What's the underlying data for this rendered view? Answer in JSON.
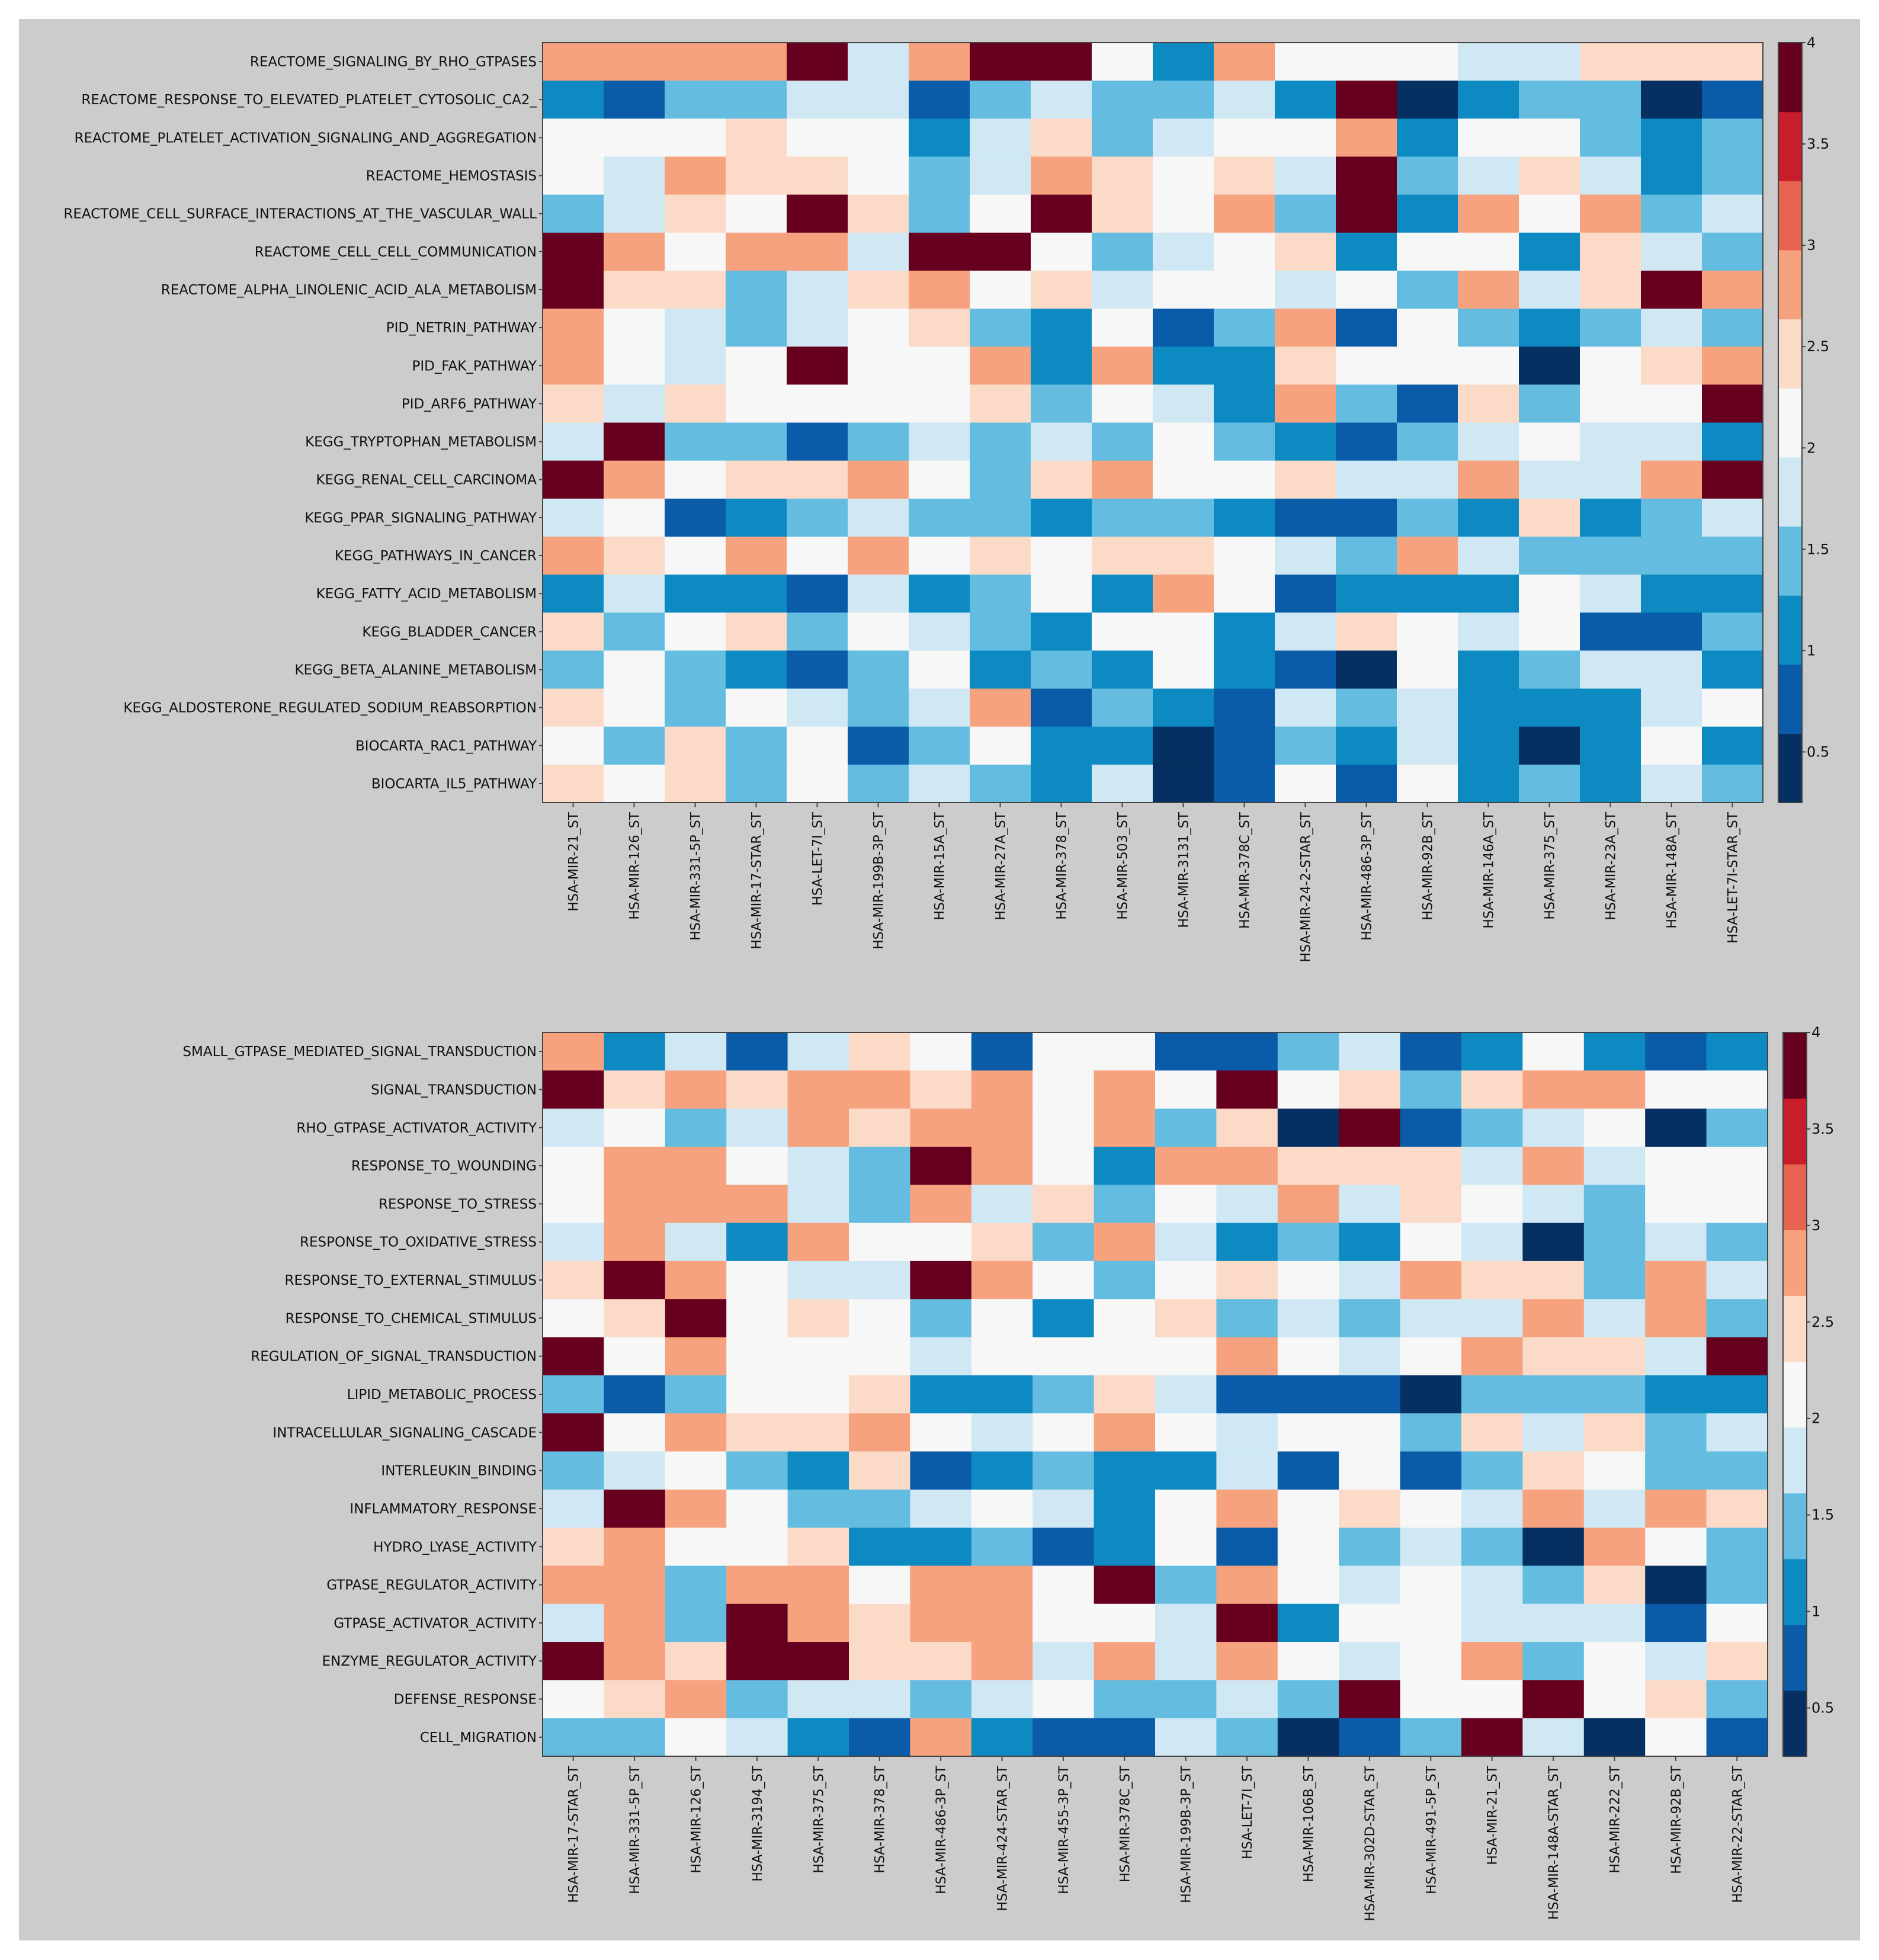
{
  "colorbar": {
    "min": 0.25,
    "max": 4,
    "ticks": [
      0.5,
      1,
      1.5,
      2,
      2.5,
      3,
      3.5,
      4
    ],
    "tick_labels": [
      "0.5",
      "1",
      "1.5",
      "2",
      "2.5",
      "3",
      "3.5",
      "4"
    ],
    "colors": [
      "#053061",
      "#0a5ca8",
      "#0e8ac3",
      "#64bde0",
      "#cfe8f3",
      "#f7f7f7",
      "#fbdbc8",
      "#f6a27f",
      "#e56350",
      "#c81d2a",
      "#67001f"
    ]
  },
  "chart_data": [
    {
      "type": "heatmap",
      "name": "reactome-kegg-pathways",
      "rows": [
        "REACTOME_SIGNALING_BY_RHO_GTPASES",
        "REACTOME_RESPONSE_TO_ELEVATED_PLATELET_CYTOSOLIC_CA2_",
        "REACTOME_PLATELET_ACTIVATION_SIGNALING_AND_AGGREGATION",
        "REACTOME_HEMOSTASIS",
        "REACTOME_CELL_SURFACE_INTERACTIONS_AT_THE_VASCULAR_WALL",
        "REACTOME_CELL_CELL_COMMUNICATION",
        "REACTOME_ALPHA_LINOLENIC_ACID_ALA_METABOLISM",
        "PID_NETRIN_PATHWAY",
        "PID_FAK_PATHWAY",
        "PID_ARF6_PATHWAY",
        "KEGG_TRYPTOPHAN_METABOLISM",
        "KEGG_RENAL_CELL_CARCINOMA",
        "KEGG_PPAR_SIGNALING_PATHWAY",
        "KEGG_PATHWAYS_IN_CANCER",
        "KEGG_FATTY_ACID_METABOLISM",
        "KEGG_BLADDER_CANCER",
        "KEGG_BETA_ALANINE_METABOLISM",
        "KEGG_ALDOSTERONE_REGULATED_SODIUM_REABSORPTION",
        "BIOCARTA_RAC1_PATHWAY",
        "BIOCARTA_IL5_PATHWAY"
      ],
      "columns": [
        "HSA-MIR-21_ST",
        "HSA-MIR-126_ST",
        "HSA-MIR-331-5P_ST",
        "HSA-MIR-17-STAR_ST",
        "HSA-LET-7I_ST",
        "HSA-MIR-199B-3P_ST",
        "HSA-MIR-15A_ST",
        "HSA-MIR-27A_ST",
        "HSA-MIR-378_ST",
        "HSA-MIR-503_ST",
        "HSA-MIR-3131_ST",
        "HSA-MIR-378C_ST",
        "HSA-MIR-24-2-STAR_ST",
        "HSA-MIR-486-3P_ST",
        "HSA-MIR-92B_ST",
        "HSA-MIR-146A_ST",
        "HSA-MIR-375_ST",
        "HSA-MIR-23A_ST",
        "HSA-MIR-148A_ST",
        "HSA-LET-7I-STAR_ST"
      ],
      "values": [
        [
          2.8,
          2.8,
          2.8,
          2.8,
          4,
          1.8,
          2.8,
          4,
          4,
          2,
          1.2,
          2.8,
          2,
          2,
          2,
          1.8,
          1.8,
          2.4,
          2.4,
          2.4
        ],
        [
          1.2,
          0.8,
          1.5,
          1.5,
          1.8,
          1.8,
          0.8,
          1.5,
          1.8,
          1.5,
          1.5,
          1.8,
          1.2,
          4,
          0.4,
          1.2,
          1.5,
          1.5,
          0.4,
          0.8
        ],
        [
          2,
          2,
          2,
          2.4,
          2,
          2,
          1.2,
          1.8,
          2.4,
          1.5,
          1.8,
          2,
          2,
          2.8,
          1.2,
          2,
          2,
          1.5,
          1.2,
          1.5
        ],
        [
          2,
          1.8,
          2.8,
          2.4,
          2.4,
          2,
          1.5,
          1.8,
          2.8,
          2.4,
          2,
          2.4,
          1.8,
          4,
          1.5,
          1.8,
          2.4,
          1.8,
          1.2,
          1.5
        ],
        [
          1.5,
          1.8,
          2.4,
          2,
          4,
          2.4,
          1.5,
          2,
          4,
          2.4,
          2,
          2.8,
          1.5,
          4,
          1.2,
          2.8,
          2,
          2.8,
          1.5,
          1.8
        ],
        [
          4,
          2.8,
          2,
          2.8,
          2.8,
          1.8,
          4,
          4,
          2,
          1.5,
          1.8,
          2,
          2.4,
          1.2,
          2,
          2,
          1.2,
          2.4,
          1.8,
          1.5
        ],
        [
          4,
          2.4,
          2.4,
          1.5,
          1.8,
          2.4,
          2.8,
          2,
          2.4,
          1.8,
          2,
          2,
          1.8,
          2,
          1.5,
          2.8,
          1.8,
          2.4,
          4,
          2.8
        ],
        [
          2.8,
          2,
          1.8,
          1.5,
          1.8,
          2,
          2.4,
          1.5,
          1.2,
          2,
          0.8,
          1.5,
          2.8,
          0.8,
          2,
          1.5,
          1.2,
          1.5,
          1.8,
          1.5
        ],
        [
          2.8,
          2,
          1.8,
          2,
          4,
          2,
          2,
          2.8,
          1.2,
          2.8,
          1.2,
          1.2,
          2.4,
          2,
          2,
          2,
          0.4,
          2,
          2.4,
          2.8
        ],
        [
          2.4,
          1.8,
          2.4,
          2,
          2,
          2,
          2,
          2.4,
          1.5,
          2,
          1.8,
          1.2,
          2.8,
          1.5,
          0.8,
          2.4,
          1.5,
          2,
          2,
          4
        ],
        [
          1.8,
          4,
          1.5,
          1.5,
          0.8,
          1.5,
          1.8,
          1.5,
          1.8,
          1.5,
          2,
          1.5,
          1.2,
          0.8,
          1.5,
          1.8,
          2,
          1.8,
          1.8,
          1.2
        ],
        [
          4,
          2.8,
          2,
          2.4,
          2.4,
          2.8,
          2,
          1.5,
          2.4,
          2.8,
          2,
          2,
          2.4,
          1.8,
          1.8,
          2.8,
          1.8,
          1.8,
          2.8,
          4
        ],
        [
          1.8,
          2,
          0.8,
          1.2,
          1.5,
          1.8,
          1.5,
          1.5,
          1.2,
          1.5,
          1.5,
          1.2,
          0.8,
          0.8,
          1.5,
          1.2,
          2.4,
          1.2,
          1.5,
          1.8
        ],
        [
          2.8,
          2.4,
          2,
          2.8,
          2,
          2.8,
          2,
          2.4,
          2,
          2.4,
          2.4,
          2,
          1.8,
          1.5,
          2.8,
          1.8,
          1.5,
          1.5,
          1.5,
          1.5
        ],
        [
          1.2,
          1.8,
          1.2,
          1.2,
          0.8,
          1.8,
          1.2,
          1.5,
          2,
          1.2,
          2.8,
          2,
          0.8,
          1.2,
          1.2,
          1.2,
          2,
          1.8,
          1.2,
          1.2
        ],
        [
          2.4,
          1.5,
          2,
          2.4,
          1.5,
          2,
          1.8,
          1.5,
          1.2,
          2,
          2,
          1.2,
          1.8,
          2.4,
          2,
          1.8,
          2,
          0.8,
          0.8,
          1.5
        ],
        [
          1.5,
          2,
          1.5,
          1.2,
          0.8,
          1.5,
          2,
          1.2,
          1.5,
          1.2,
          2,
          1.2,
          0.8,
          0.4,
          2,
          1.2,
          1.5,
          1.8,
          1.8,
          1.2
        ],
        [
          2.4,
          2,
          1.5,
          2,
          1.8,
          1.5,
          1.8,
          2.8,
          0.8,
          1.5,
          1.2,
          0.8,
          1.8,
          1.5,
          1.8,
          1.2,
          1.2,
          1.2,
          1.8,
          2
        ],
        [
          2,
          1.5,
          2.4,
          1.5,
          2,
          0.8,
          1.5,
          2,
          1.2,
          1.2,
          0.4,
          0.8,
          1.5,
          1.2,
          1.8,
          1.2,
          0.4,
          1.2,
          2,
          1.2
        ],
        [
          2.4,
          2,
          2.4,
          1.5,
          2,
          1.5,
          1.8,
          1.5,
          1.2,
          1.8,
          0.4,
          0.8,
          2,
          0.8,
          2,
          1.2,
          1.5,
          1.2,
          1.8,
          1.5
        ]
      ]
    },
    {
      "type": "heatmap",
      "name": "go-terms",
      "rows": [
        "SMALL_GTPASE_MEDIATED_SIGNAL_TRANSDUCTION",
        "SIGNAL_TRANSDUCTION",
        "RHO_GTPASE_ACTIVATOR_ACTIVITY",
        "RESPONSE_TO_WOUNDING",
        "RESPONSE_TO_STRESS",
        "RESPONSE_TO_OXIDATIVE_STRESS",
        "RESPONSE_TO_EXTERNAL_STIMULUS",
        "RESPONSE_TO_CHEMICAL_STIMULUS",
        "REGULATION_OF_SIGNAL_TRANSDUCTION",
        "LIPID_METABOLIC_PROCESS",
        "INTRACELLULAR_SIGNALING_CASCADE",
        "INTERLEUKIN_BINDING",
        "INFLAMMATORY_RESPONSE",
        "HYDRO_LYASE_ACTIVITY",
        "GTPASE_REGULATOR_ACTIVITY",
        "GTPASE_ACTIVATOR_ACTIVITY",
        "ENZYME_REGULATOR_ACTIVITY",
        "DEFENSE_RESPONSE",
        "CELL_MIGRATION"
      ],
      "columns": [
        "HSA-MIR-17-STAR_ST",
        "HSA-MIR-331-5P_ST",
        "HSA-MIR-126_ST",
        "HSA-MIR-3194_ST",
        "HSA-MIR-375_ST",
        "HSA-MIR-378_ST",
        "HSA-MIR-486-3P_ST",
        "HSA-MIR-424-STAR_ST",
        "HSA-MIR-455-3P_ST",
        "HSA-MIR-378C_ST",
        "HSA-MIR-199B-3P_ST",
        "HSA-LET-7I_ST",
        "HSA-MIR-106B_ST",
        "HSA-MIR-302D-STAR_ST",
        "HSA-MIR-491-5P_ST",
        "HSA-MIR-21_ST",
        "HSA-MIR-148A-STAR_ST",
        "HSA-MIR-222_ST",
        "HSA-MIR-92B_ST",
        "HSA-MIR-22-STAR_ST"
      ],
      "values": [
        [
          2.8,
          1.2,
          1.8,
          0.8,
          1.8,
          2.4,
          2,
          0.8,
          2,
          2,
          0.8,
          0.8,
          1.5,
          1.8,
          0.8,
          1.2,
          2,
          1.2,
          0.8,
          1.2
        ],
        [
          4,
          2.4,
          2.8,
          2.4,
          2.8,
          2.8,
          2.4,
          2.8,
          2,
          2.8,
          2,
          4,
          2,
          2.4,
          1.5,
          2.4,
          2.8,
          2.8,
          2,
          2
        ],
        [
          1.8,
          2,
          1.5,
          1.8,
          2.8,
          2.4,
          2.8,
          2.8,
          2,
          2.8,
          1.5,
          2.4,
          0.4,
          4,
          0.8,
          1.5,
          1.8,
          2,
          0.4,
          1.5
        ],
        [
          2,
          2.8,
          2.8,
          2,
          1.8,
          1.5,
          4,
          2.8,
          2,
          1.2,
          2.8,
          2.8,
          2.4,
          2.4,
          2.4,
          1.8,
          2.8,
          1.8,
          2,
          2
        ],
        [
          2,
          2.8,
          2.8,
          2.8,
          1.8,
          1.5,
          2.8,
          1.8,
          2.4,
          1.5,
          2,
          1.8,
          2.8,
          1.8,
          2.4,
          2,
          1.8,
          1.5,
          2,
          2
        ],
        [
          1.8,
          2.8,
          1.8,
          1.2,
          2.8,
          2,
          2,
          2.4,
          1.5,
          2.8,
          1.8,
          1.2,
          1.5,
          1.2,
          2,
          1.8,
          0.4,
          1.5,
          1.8,
          1.5
        ],
        [
          2.4,
          4,
          2.8,
          2,
          1.8,
          1.8,
          4,
          2.8,
          2,
          1.5,
          2,
          2.4,
          2,
          1.8,
          2.8,
          2.4,
          2.4,
          1.5,
          2.8,
          1.8
        ],
        [
          2,
          2.4,
          4,
          2,
          2.4,
          2,
          1.5,
          2,
          1.2,
          2,
          2.4,
          1.5,
          1.8,
          1.5,
          1.8,
          1.8,
          2.8,
          1.8,
          2.8,
          1.5
        ],
        [
          4,
          2,
          2.8,
          2,
          2,
          2,
          1.8,
          2,
          2,
          2,
          2,
          2.8,
          2,
          1.8,
          2,
          2.8,
          2.4,
          2.4,
          1.8,
          4
        ],
        [
          1.5,
          0.8,
          1.5,
          2,
          2,
          2.4,
          1.2,
          1.2,
          1.5,
          2.4,
          1.8,
          0.8,
          0.8,
          0.8,
          0.4,
          1.5,
          1.5,
          1.5,
          1.2,
          1.2
        ],
        [
          4,
          2,
          2.8,
          2.4,
          2.4,
          2.8,
          2,
          1.8,
          2,
          2.8,
          2,
          1.8,
          2,
          2,
          1.5,
          2.4,
          1.8,
          2.4,
          1.5,
          1.8
        ],
        [
          1.5,
          1.8,
          2,
          1.5,
          1.2,
          2.4,
          0.8,
          1.2,
          1.5,
          1.2,
          1.2,
          1.8,
          0.8,
          2,
          0.8,
          1.5,
          2.4,
          2,
          1.5,
          1.5
        ],
        [
          1.8,
          4,
          2.8,
          2,
          1.5,
          1.5,
          1.8,
          2,
          1.8,
          1.2,
          2,
          2.8,
          2,
          2.4,
          2,
          1.8,
          2.8,
          1.8,
          2.8,
          2.4
        ],
        [
          2.4,
          2.8,
          2,
          2,
          2.4,
          1.2,
          1.2,
          1.5,
          0.8,
          1.2,
          2,
          0.8,
          2,
          1.5,
          1.8,
          1.5,
          0.4,
          2.8,
          2,
          1.5
        ],
        [
          2.8,
          2.8,
          1.5,
          2.8,
          2.8,
          2,
          2.8,
          2.8,
          2,
          4,
          1.5,
          2.8,
          2,
          1.8,
          2,
          1.8,
          1.5,
          2.4,
          0.4,
          1.5
        ],
        [
          1.8,
          2.8,
          1.5,
          4,
          2.8,
          2.4,
          2.8,
          2.8,
          2,
          2,
          1.8,
          4,
          1.2,
          2,
          2,
          1.8,
          1.8,
          1.8,
          0.8,
          2
        ],
        [
          4,
          2.8,
          2.4,
          4,
          4,
          2.4,
          2.4,
          2.8,
          1.8,
          2.8,
          1.8,
          2.8,
          2,
          1.8,
          2,
          2.8,
          1.5,
          2,
          1.8,
          2.4
        ],
        [
          2,
          2.4,
          2.8,
          1.5,
          1.8,
          1.8,
          1.5,
          1.8,
          2,
          1.5,
          1.5,
          1.8,
          1.5,
          4,
          2,
          2,
          4,
          2,
          2.4,
          1.5
        ],
        [
          1.5,
          1.5,
          2,
          1.8,
          1.2,
          0.8,
          2.8,
          1.2,
          0.8,
          0.8,
          1.8,
          1.5,
          0.4,
          0.8,
          1.5,
          4,
          1.8,
          0.4,
          2,
          0.8
        ]
      ]
    }
  ]
}
